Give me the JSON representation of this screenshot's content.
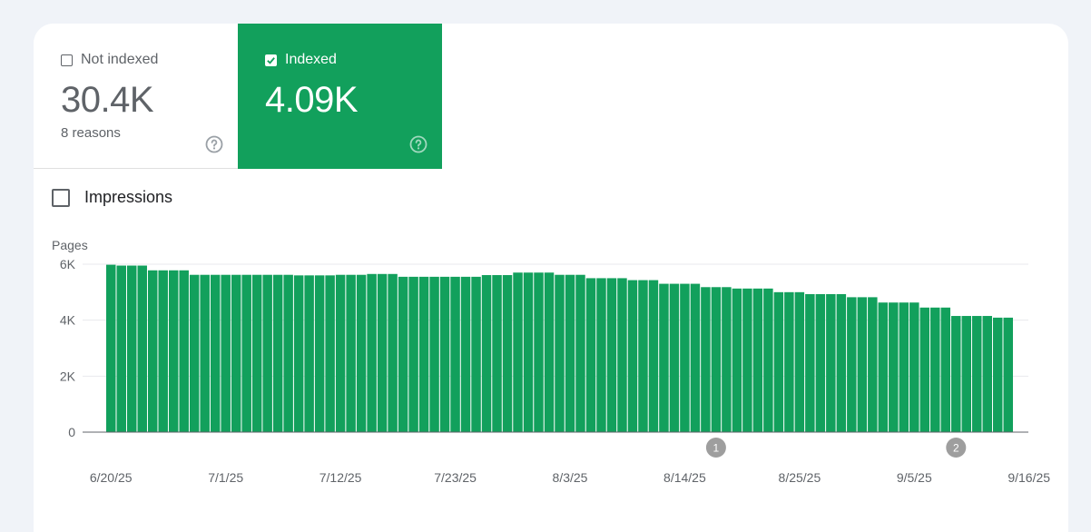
{
  "tiles": {
    "not_indexed": {
      "label": "Not indexed",
      "value": "30.4K",
      "sub": "8 reasons",
      "checked": false
    },
    "indexed": {
      "label": "Indexed",
      "value": "4.09K",
      "checked": true
    }
  },
  "impressions": {
    "label": "Impressions",
    "checked": false
  },
  "colors": {
    "indexed": "#12a05c",
    "background": "#f0f3f8",
    "annotation": "#9e9e9e"
  },
  "chart_data": {
    "type": "bar",
    "ylabel": "Pages",
    "yticks": [
      {
        "value": 0,
        "label": "0"
      },
      {
        "value": 2000,
        "label": "2K"
      },
      {
        "value": 4000,
        "label": "4K"
      },
      {
        "value": 6000,
        "label": "6K"
      }
    ],
    "ylim": [
      0,
      6000
    ],
    "grid": true,
    "start_date": "6/20/25",
    "xtick_labels": [
      "6/20/25",
      "7/1/25",
      "7/12/25",
      "7/23/25",
      "8/3/25",
      "8/14/25",
      "8/25/25",
      "9/5/25",
      "9/16/25"
    ],
    "annotations": [
      {
        "label": "1",
        "date": "8/17/25"
      },
      {
        "label": "2",
        "date": "9/9/25"
      }
    ],
    "series": [
      {
        "color": "#12a05c",
        "values": [
          5980,
          5950,
          5950,
          5950,
          5780,
          5780,
          5780,
          5780,
          5620,
          5620,
          5620,
          5620,
          5620,
          5620,
          5620,
          5620,
          5620,
          5620,
          5600,
          5600,
          5600,
          5600,
          5620,
          5620,
          5620,
          5650,
          5650,
          5650,
          5550,
          5550,
          5550,
          5550,
          5550,
          5550,
          5550,
          5550,
          5610,
          5610,
          5610,
          5700,
          5700,
          5700,
          5700,
          5620,
          5620,
          5620,
          5500,
          5500,
          5500,
          5500,
          5430,
          5430,
          5430,
          5300,
          5300,
          5300,
          5300,
          5180,
          5180,
          5180,
          5130,
          5130,
          5130,
          5130,
          5000,
          5000,
          5000,
          4930,
          4930,
          4930,
          4930,
          4820,
          4820,
          4820,
          4630,
          4630,
          4630,
          4630,
          4450,
          4450,
          4450,
          4150,
          4150,
          4150,
          4150,
          4090,
          4090
        ]
      }
    ]
  }
}
